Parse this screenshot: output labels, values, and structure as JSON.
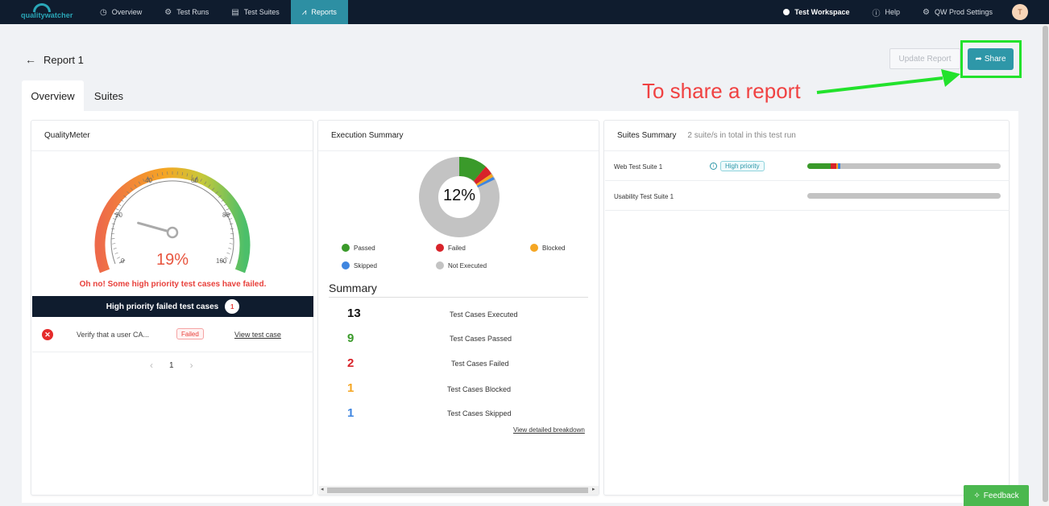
{
  "nav": {
    "logo": "qualitywatcher",
    "items": [
      {
        "label": "Overview",
        "icon": "clock-icon"
      },
      {
        "label": "Test Runs",
        "icon": "gear-icon"
      },
      {
        "label": "Test Suites",
        "icon": "document-icon"
      },
      {
        "label": "Reports",
        "icon": "chart-icon"
      }
    ],
    "workspace": "Test Workspace",
    "help": "Help",
    "settings": "QW Prod Settings",
    "avatar": "T"
  },
  "header": {
    "title": "Report 1",
    "update_label": "Update Report",
    "share_label": "Share"
  },
  "annotation": {
    "text": "To share a report"
  },
  "tabs": [
    "Overview",
    "Suites"
  ],
  "quality_meter": {
    "title": "QualityMeter",
    "percent_value": 19,
    "percent": "19%",
    "ticks": [
      "0",
      "20",
      "40",
      "60",
      "80",
      "100"
    ],
    "message": "Oh no! Some high priority test cases have failed.",
    "hp_title": "High priority failed test cases",
    "hp_count": "1",
    "rows": [
      {
        "name": "Verify that a user CA...",
        "status": "Failed",
        "link": "View test case"
      }
    ],
    "page": "1"
  },
  "execution": {
    "title": "Execution Summary",
    "percent": "12%",
    "legend": [
      "Passed",
      "Failed",
      "Blocked",
      "Skipped",
      "Not Executed"
    ],
    "colors": {
      "passed": "#3a9a2a",
      "failed": "#d8232a",
      "blocked": "#f5a623",
      "skipped": "#3f86e0",
      "not_executed": "#c3c3c3"
    },
    "summary_title": "Summary",
    "stats": [
      {
        "value": "13",
        "label": "Test Cases Executed",
        "color": "#111111"
      },
      {
        "value": "9",
        "label": "Test Cases Passed",
        "color": "#3a9a2a"
      },
      {
        "value": "2",
        "label": "Test Cases Failed",
        "color": "#d8232a"
      },
      {
        "value": "1",
        "label": "Test Cases Blocked",
        "color": "#f5a623"
      },
      {
        "value": "1",
        "label": "Test Cases Skipped",
        "color": "#3f86e0"
      }
    ],
    "detail_link": "View detailed breakdown"
  },
  "suites": {
    "title": "Suites Summary",
    "subtitle": "2 suite/s in total in this test run",
    "rows": [
      {
        "name": "Web Test Suite 1",
        "priority": "High priority",
        "passed": 0.12,
        "failed": 0.03,
        "blocked": 0.01,
        "skipped": 0.01
      },
      {
        "name": "Usability Test Suite 1",
        "priority": "",
        "passed": 0,
        "failed": 0,
        "blocked": 0,
        "skipped": 0
      }
    ]
  },
  "feedback": "Feedback"
}
